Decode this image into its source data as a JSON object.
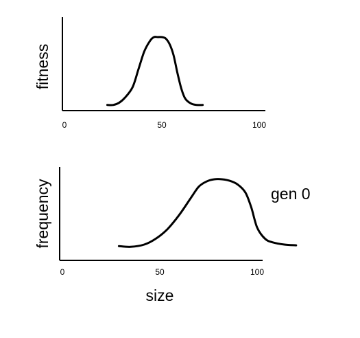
{
  "chart_data": [
    {
      "type": "line",
      "title": "",
      "xlabel": "",
      "ylabel": "fitness",
      "xlim": [
        0,
        100
      ],
      "x_ticks": [
        0,
        50,
        100
      ],
      "grid": false,
      "line_color": "#000000",
      "series": [
        {
          "x": [
            22,
            25,
            28,
            31,
            35,
            38,
            41,
            44,
            46,
            48,
            50,
            52,
            54,
            56,
            58,
            60,
            62,
            65,
            68,
            71
          ],
          "values": [
            0.05,
            0.05,
            0.08,
            0.15,
            0.3,
            0.55,
            0.8,
            0.95,
            1.0,
            1.0,
            1.0,
            0.98,
            0.9,
            0.75,
            0.5,
            0.28,
            0.14,
            0.07,
            0.05,
            0.05
          ]
        }
      ]
    },
    {
      "type": "line",
      "title": "",
      "xlabel": "size",
      "ylabel": "frequency",
      "xlim": [
        0,
        120
      ],
      "x_ticks": [
        0,
        50,
        100
      ],
      "grid": false,
      "annotation": "gen 0",
      "line_color": "#000000",
      "series": [
        {
          "x": [
            29,
            35,
            42,
            48,
            54,
            60,
            66,
            70,
            74,
            78,
            82,
            86,
            90,
            94,
            97,
            100,
            104,
            108,
            114,
            120
          ],
          "values": [
            0.1,
            0.09,
            0.12,
            0.2,
            0.33,
            0.52,
            0.75,
            0.9,
            0.97,
            1.0,
            1.0,
            0.98,
            0.93,
            0.82,
            0.62,
            0.35,
            0.2,
            0.15,
            0.12,
            0.11
          ]
        }
      ]
    }
  ]
}
